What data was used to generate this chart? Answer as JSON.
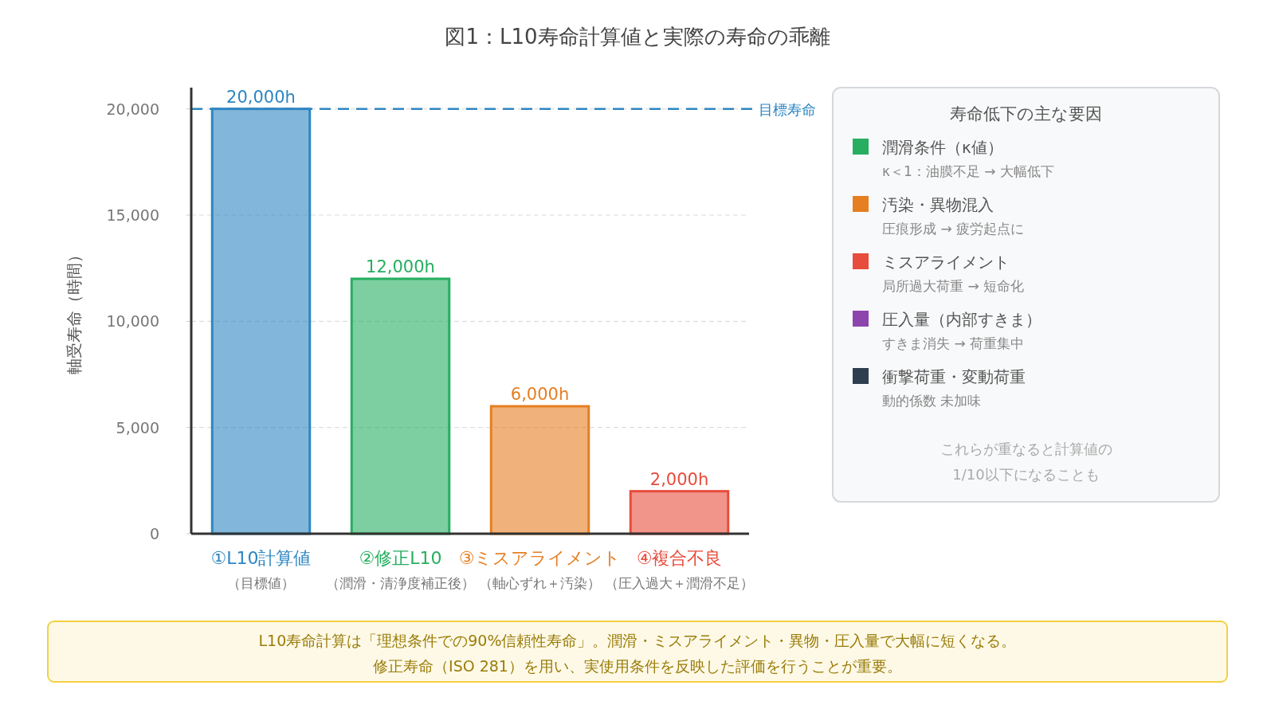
{
  "chart_data": [
    {
      "type": "bar",
      "title": "図1：L10寿命計算値と実際の寿命の乖離",
      "ylabel": "軸受寿命（時間）",
      "categories": [
        "①L10計算値（目標値）",
        "②修正L10（潤滑・清浄度補正後）",
        "③ミスアライメント（軸心ずれ＋汚染）",
        "④複合不良（圧入過大＋潤滑不足）"
      ],
      "values": [
        20000,
        12000,
        6000,
        2000
      ],
      "colors": [
        "#2e86c1",
        "#27ae60",
        "#e67e22",
        "#e74c3c"
      ],
      "value_labels": [
        "20,000h",
        "12,000h",
        "6,000h",
        "2,000h"
      ],
      "ylim": [
        0,
        21000
      ],
      "yticks": [
        0,
        {
          "value": 5000,
          "label": "5,000"
        },
        {
          "value": 10000,
          "label": "10,000"
        },
        {
          "value": 15000,
          "label": "15,000"
        },
        {
          "value": 20000,
          "label": "20,000"
        }
      ],
      "grid": "y",
      "ref_lines": [
        {
          "axis": "y",
          "value": 20000,
          "label": "目標寿命",
          "color": "#2e86c1",
          "line_style": "dashed"
        }
      ],
      "annotations": [
        "L10寿命計算は「理想条件での90%信頼性寿命」。潤滑・ミスアライメント・異物・圧入量で大幅に短くなる。修正寿命（ISO 281）を用い、実使用条件を反映した評価を行うことが重要。"
      ]
    },
    {
      "type": "other",
      "title": "寿命低下の主な要因",
      "categories": [
        "潤滑条件（κ値）",
        "汚染・異物混入",
        "ミスアライメント",
        "圧入量（内部すきま）",
        "衝撃荷重・変動荷重"
      ],
      "colors": [
        "#27ae60",
        "#e67e22",
        "#e74c3c",
        "#8e44ad",
        "#2c3e50"
      ],
      "annotations": [
        "κ＜1：油膜不足 → 大幅低下",
        "圧痕形成 → 疲労起点に",
        "局所過大荷重 → 短命化",
        "すきま消失 → 荷重集中",
        "動的係数 未加味",
        "これらが重なると計算値の\n1/10以下になることも"
      ]
    }
  ]
}
